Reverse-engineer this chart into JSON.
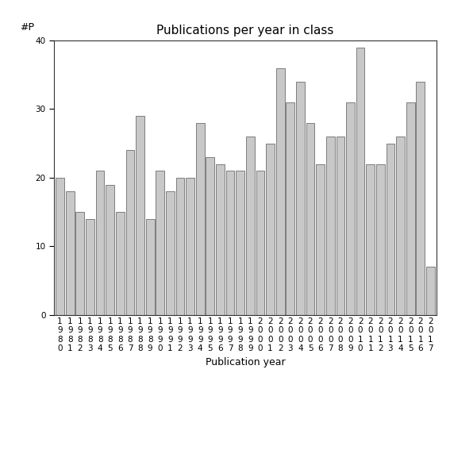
{
  "title": "Publications per year in class",
  "xlabel": "Publication year",
  "ylabel": "#P",
  "years": [
    "1980",
    "1981",
    "1982",
    "1983",
    "1984",
    "1985",
    "1986",
    "1987",
    "1988",
    "1989",
    "1990",
    "1991",
    "1992",
    "1993",
    "1994",
    "1995",
    "1996",
    "1997",
    "1998",
    "1999",
    "2000",
    "2001",
    "2002",
    "2003",
    "2004",
    "2005",
    "2006",
    "2007",
    "2008",
    "2009",
    "2010",
    "2011",
    "2012",
    "2013",
    "2014",
    "2015",
    "2016",
    "2017"
  ],
  "values": [
    20,
    18,
    15,
    14,
    21,
    19,
    15,
    24,
    29,
    14,
    21,
    18,
    20,
    20,
    28,
    23,
    22,
    21,
    21,
    26,
    21,
    25,
    36,
    31,
    34,
    28,
    22,
    26,
    26,
    31,
    39,
    22,
    22,
    25,
    26,
    31,
    34,
    7
  ],
  "bar_color": "#c8c8c8",
  "bar_edge_color": "#555555",
  "bar_edge_width": 0.5,
  "ylim": [
    0,
    40
  ],
  "yticks": [
    0,
    10,
    20,
    30,
    40
  ],
  "title_fontsize": 11,
  "axis_label_fontsize": 9,
  "tick_fontsize": 7.5,
  "bg_color": "#ffffff",
  "fig_bg_color": "#ffffff"
}
